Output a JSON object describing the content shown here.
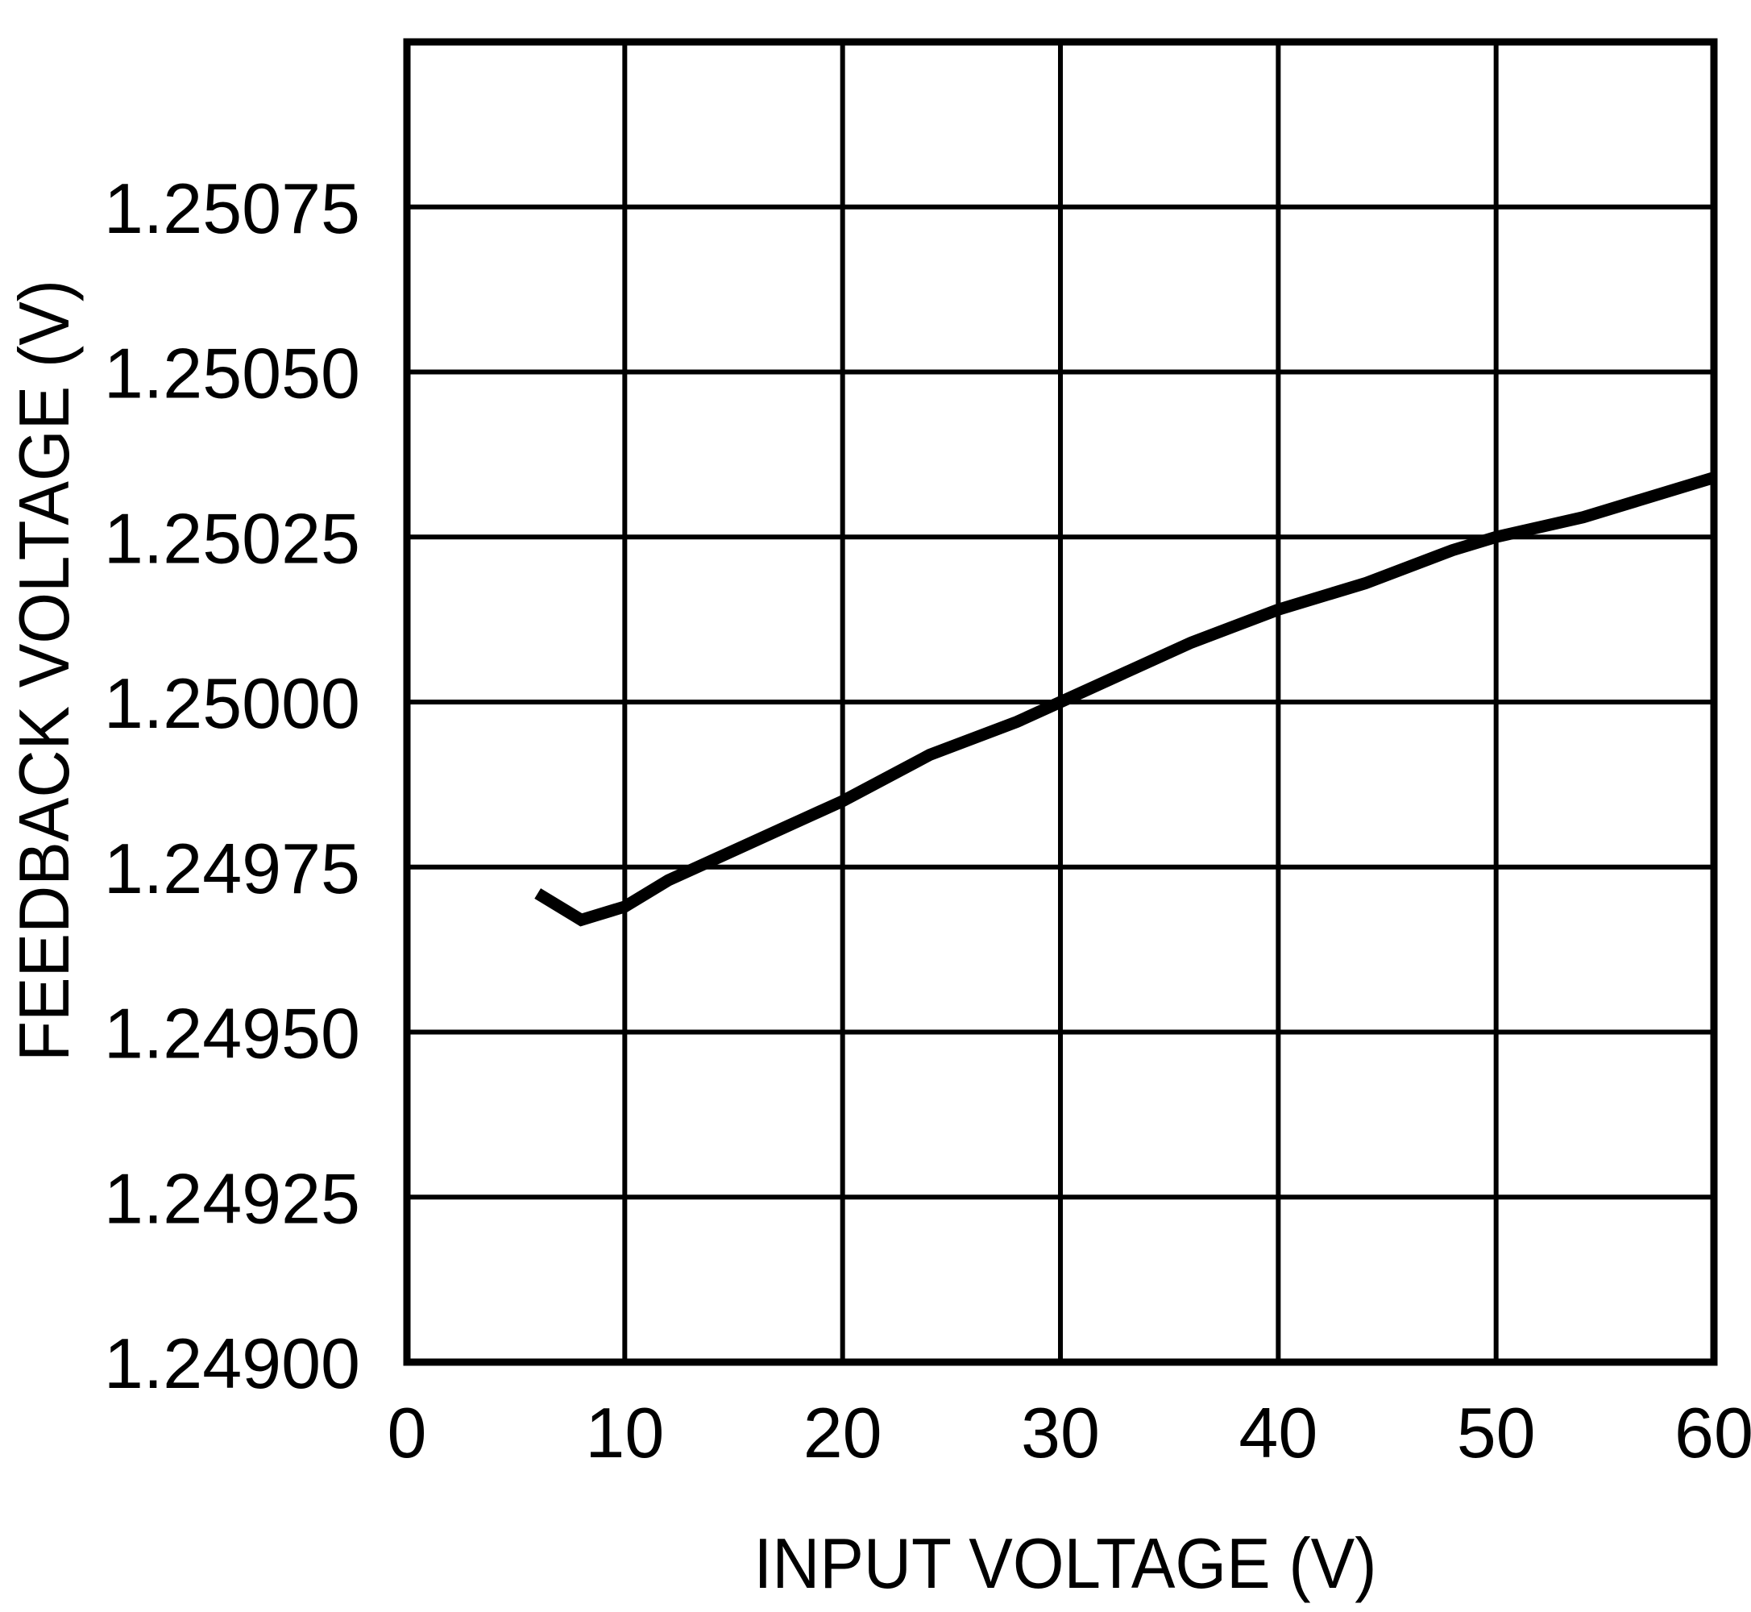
{
  "colors": {
    "background": "#ffffff",
    "foreground": "#000000"
  },
  "chart_data": {
    "type": "line",
    "title": "",
    "xlabel": "INPUT VOLTAGE (V)",
    "ylabel": "FEEDBACK VOLTAGE (V)",
    "xlim": [
      0,
      60
    ],
    "ylim": [
      1.249,
      1.251
    ],
    "x_ticks": [
      0,
      10,
      20,
      30,
      40,
      50,
      60
    ],
    "x_tick_labels": [
      "0",
      "10",
      "20",
      "30",
      "40",
      "50",
      "60"
    ],
    "y_ticks": [
      1.249,
      1.24925,
      1.2495,
      1.24975,
      1.25,
      1.25025,
      1.2505,
      1.25075
    ],
    "y_tick_labels": [
      "1.24900",
      "1.24925",
      "1.24950",
      "1.24975",
      "1.25000",
      "1.25025",
      "1.25050",
      "1.25075"
    ],
    "y_grid_lines": [
      1.24925,
      1.2495,
      1.24975,
      1.25,
      1.25025,
      1.2505,
      1.25075
    ],
    "x_grid_lines": [
      10,
      20,
      30,
      40,
      50
    ],
    "grid": true,
    "legend": null,
    "series": [
      {
        "name": "Feedback Voltage",
        "x": [
          6,
          8,
          10,
          12,
          14,
          18,
          20,
          24,
          28,
          30,
          36,
          40,
          44,
          48,
          50,
          54,
          60
        ],
        "y": [
          1.24971,
          1.24967,
          1.24969,
          1.24973,
          1.24976,
          1.24982,
          1.24985,
          1.24992,
          1.24997,
          1.25,
          1.25009,
          1.25014,
          1.25018,
          1.25023,
          1.25025,
          1.25028,
          1.25034
        ]
      }
    ]
  }
}
